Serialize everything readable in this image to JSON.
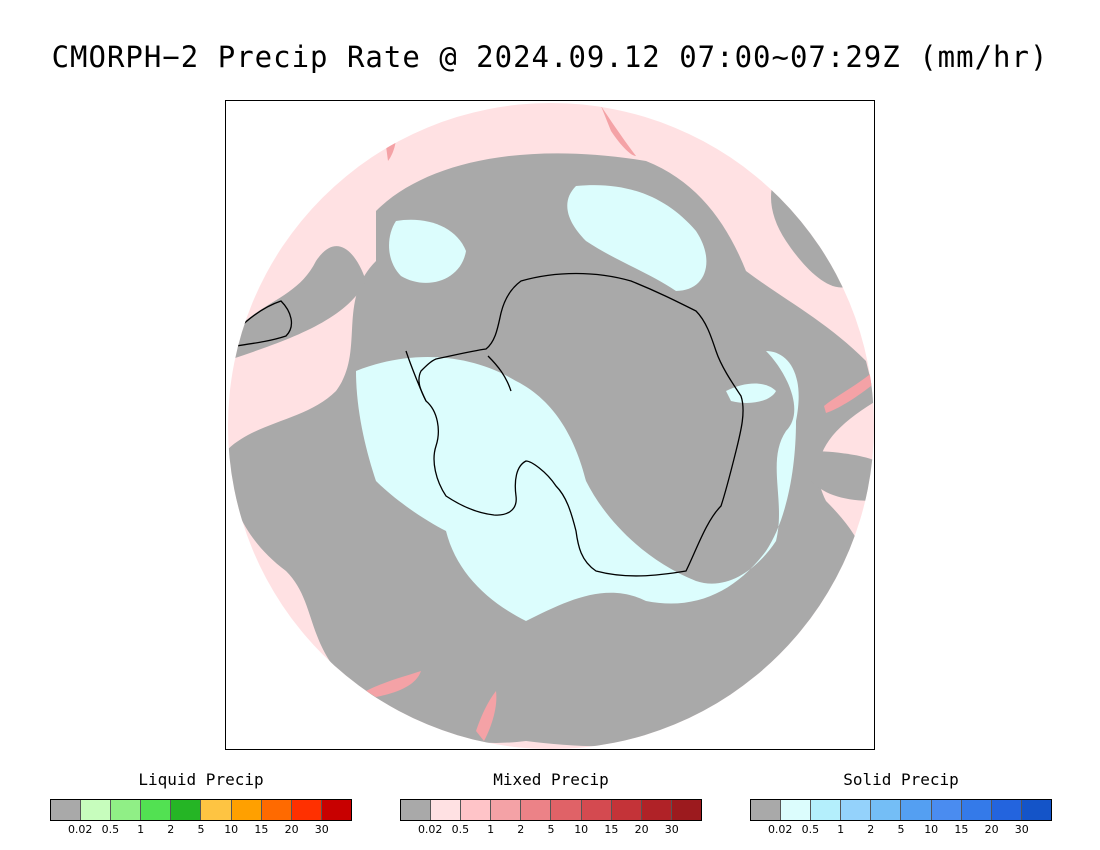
{
  "title": "CMORPH−2 Precip Rate @ 2024.09.12 07:00~07:29Z (mm/hr)",
  "map": {
    "projection": "south-polar-stereographic",
    "colors": {
      "no_precip_gray": "#a9a9a9",
      "mixed_light": "#ffe1e3",
      "solid_light": "#dcfdfd",
      "outside": "#ffffff",
      "coastline": "#000000"
    }
  },
  "legends": [
    {
      "title": "Liquid Precip",
      "colors": [
        "#a9a9a9",
        "#c7fdbd",
        "#90ef86",
        "#52e152",
        "#25b525",
        "#fec442",
        "#ffa000",
        "#ff6a00",
        "#ff3000",
        "#c80000"
      ],
      "ticks": [
        "0.02",
        "0.5",
        "1",
        "2",
        "5",
        "10",
        "15",
        "20",
        "30"
      ]
    },
    {
      "title": "Mixed Precip",
      "colors": [
        "#a9a9a9",
        "#ffe1e3",
        "#ffc4c8",
        "#f4a2a6",
        "#ec8287",
        "#e06267",
        "#d44a50",
        "#c43338",
        "#b02227",
        "#9c1a1e"
      ],
      "ticks": [
        "0.02",
        "0.5",
        "1",
        "2",
        "5",
        "10",
        "15",
        "20",
        "30"
      ]
    },
    {
      "title": "Solid Precip",
      "colors": [
        "#a9a9a9",
        "#dcfdfd",
        "#b4effc",
        "#94d2fb",
        "#74bef6",
        "#549ff2",
        "#4a8cf0",
        "#347ae9",
        "#2364de",
        "#1454c8"
      ],
      "ticks": [
        "0.02",
        "0.5",
        "1",
        "2",
        "5",
        "10",
        "15",
        "20",
        "30"
      ]
    }
  ]
}
